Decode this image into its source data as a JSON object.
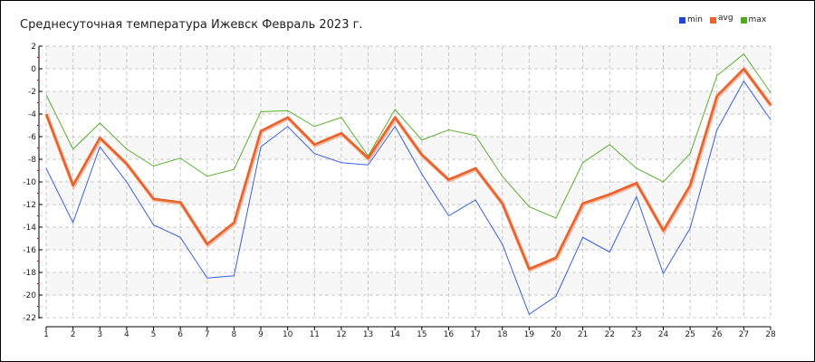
{
  "chart_data": {
    "type": "line",
    "title": "Среднесуточная температура Ижевск  Февраль 2023 г.",
    "x": [
      1,
      2,
      3,
      4,
      5,
      6,
      7,
      8,
      9,
      10,
      11,
      12,
      13,
      14,
      15,
      16,
      17,
      18,
      19,
      20,
      21,
      22,
      23,
      24,
      25,
      26,
      27,
      28
    ],
    "ylim": [
      -22,
      2
    ],
    "yticks": [
      2,
      0,
      -2,
      -4,
      -6,
      -8,
      -10,
      -12,
      -14,
      -16,
      -18,
      -20,
      -22
    ],
    "grid": true,
    "legend_position": "top-right",
    "series": [
      {
        "name": "min",
        "color": "#3a5fe0",
        "values": [
          -8.8,
          -13.6,
          -6.9,
          -10.0,
          -13.8,
          -14.9,
          -18.5,
          -18.3,
          -6.9,
          -5.1,
          -7.5,
          -8.3,
          -8.5,
          -5.1,
          -9.3,
          -13.0,
          -11.6,
          -15.5,
          -21.7,
          -20.1,
          -14.9,
          -16.2,
          -11.3,
          -18.1,
          -14.1,
          -5.4,
          -1.1,
          -4.5
        ]
      },
      {
        "name": "avg",
        "color": "#e8622c",
        "values": [
          -4.0,
          -10.3,
          -6.1,
          -8.4,
          -11.5,
          -11.8,
          -15.5,
          -13.6,
          -5.5,
          -4.3,
          -6.7,
          -5.7,
          -7.9,
          -4.3,
          -7.6,
          -9.8,
          -8.8,
          -11.9,
          -17.7,
          -16.7,
          -11.9,
          -11.1,
          -10.1,
          -14.3,
          -10.3,
          -2.4,
          0.0,
          -3.2
        ]
      },
      {
        "name": "max",
        "color": "#5cb030",
        "values": [
          -2.3,
          -7.1,
          -4.8,
          -7.1,
          -8.6,
          -7.9,
          -9.5,
          -8.9,
          -3.8,
          -3.7,
          -5.1,
          -4.3,
          -7.7,
          -3.6,
          -6.3,
          -5.4,
          -5.9,
          -9.5,
          -12.2,
          -13.2,
          -8.3,
          -6.7,
          -8.8,
          -10.0,
          -7.5,
          -0.6,
          1.3,
          -2.1
        ]
      }
    ]
  }
}
